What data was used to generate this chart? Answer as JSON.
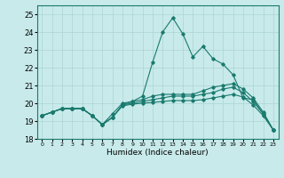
{
  "xlabel": "Humidex (Indice chaleur)",
  "ylabel": "",
  "xlim": [
    -0.5,
    23.5
  ],
  "ylim": [
    18,
    25.5
  ],
  "yticks": [
    18,
    19,
    20,
    21,
    22,
    23,
    24,
    25
  ],
  "xticks": [
    0,
    1,
    2,
    3,
    4,
    5,
    6,
    7,
    8,
    9,
    10,
    11,
    12,
    13,
    14,
    15,
    16,
    17,
    18,
    19,
    20,
    21,
    22,
    23
  ],
  "bg_color": "#c8eaea",
  "grid_color": "#aed4d4",
  "line_color": "#1a7a6e",
  "series": [
    [
      19.3,
      19.5,
      19.7,
      19.7,
      19.7,
      19.3,
      18.8,
      19.4,
      20.0,
      20.1,
      20.4,
      22.3,
      24.0,
      24.8,
      23.9,
      22.6,
      23.2,
      22.5,
      22.2,
      21.6,
      20.3,
      20.2,
      19.4,
      18.5
    ],
    [
      19.3,
      19.5,
      19.7,
      19.7,
      19.7,
      19.3,
      18.8,
      19.2,
      19.9,
      20.1,
      20.2,
      20.4,
      20.5,
      20.5,
      20.5,
      20.5,
      20.7,
      20.9,
      21.0,
      21.1,
      20.8,
      20.3,
      19.5,
      18.5
    ],
    [
      19.3,
      19.5,
      19.7,
      19.7,
      19.7,
      19.3,
      18.8,
      19.2,
      19.9,
      20.0,
      20.1,
      20.2,
      20.3,
      20.4,
      20.4,
      20.4,
      20.5,
      20.6,
      20.8,
      20.9,
      20.6,
      20.1,
      19.4,
      18.5
    ],
    [
      19.3,
      19.5,
      19.7,
      19.7,
      19.7,
      19.3,
      18.8,
      19.2,
      19.85,
      19.95,
      20.0,
      20.05,
      20.1,
      20.15,
      20.15,
      20.15,
      20.2,
      20.3,
      20.4,
      20.5,
      20.35,
      19.9,
      19.3,
      18.5
    ]
  ]
}
